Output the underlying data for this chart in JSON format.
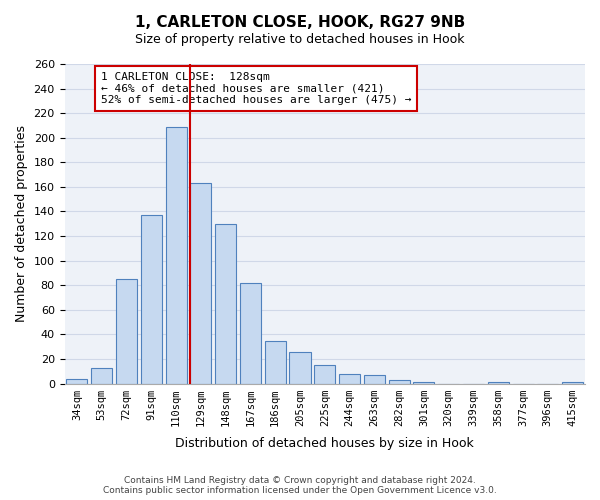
{
  "title": "1, CARLETON CLOSE, HOOK, RG27 9NB",
  "subtitle": "Size of property relative to detached houses in Hook",
  "xlabel": "Distribution of detached houses by size in Hook",
  "ylabel": "Number of detached properties",
  "categories": [
    "34sqm",
    "53sqm",
    "72sqm",
    "91sqm",
    "110sqm",
    "129sqm",
    "148sqm",
    "167sqm",
    "186sqm",
    "205sqm",
    "225sqm",
    "244sqm",
    "263sqm",
    "282sqm",
    "301sqm",
    "320sqm",
    "339sqm",
    "358sqm",
    "377sqm",
    "396sqm",
    "415sqm"
  ],
  "values": [
    4,
    13,
    85,
    137,
    209,
    163,
    130,
    82,
    35,
    26,
    15,
    8,
    7,
    3,
    1,
    0,
    0,
    1,
    0,
    0,
    1
  ],
  "bar_color": "#c6d9f0",
  "bar_edge_color": "#4f81bd",
  "vline_color": "#cc0000",
  "ylim": [
    0,
    260
  ],
  "yticks": [
    0,
    20,
    40,
    60,
    80,
    100,
    120,
    140,
    160,
    180,
    200,
    220,
    240,
    260
  ],
  "annotation_title": "1 CARLETON CLOSE:  128sqm",
  "annotation_line1": "← 46% of detached houses are smaller (421)",
  "annotation_line2": "52% of semi-detached houses are larger (475) →",
  "annotation_box_color": "#ffffff",
  "annotation_box_edge_color": "#cc0000",
  "footer_line1": "Contains HM Land Registry data © Crown copyright and database right 2024.",
  "footer_line2": "Contains public sector information licensed under the Open Government Licence v3.0.",
  "grid_color": "#d0d8e8",
  "bg_color": "#eef2f8"
}
